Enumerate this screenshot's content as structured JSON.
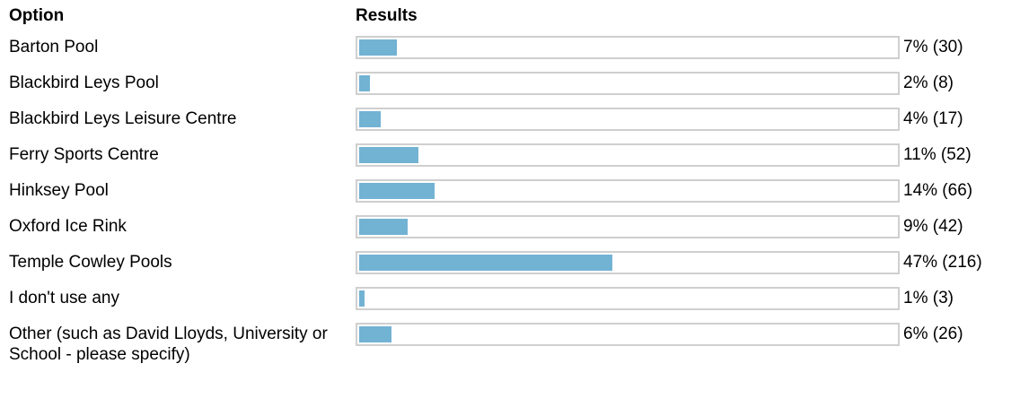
{
  "header": {
    "option": "Option",
    "results": "Results"
  },
  "rows": [
    {
      "option": "Barton Pool",
      "result": "7% (30)",
      "percent": 7
    },
    {
      "option": "Blackbird Leys Pool",
      "result": "2% (8)",
      "percent": 2
    },
    {
      "option": "Blackbird Leys Leisure Centre",
      "result": "4% (17)",
      "percent": 4
    },
    {
      "option": "Ferry Sports Centre",
      "result": "11% (52)",
      "percent": 11
    },
    {
      "option": "Hinksey Pool",
      "result": "14% (66)",
      "percent": 14
    },
    {
      "option": "Oxford Ice Rink",
      "result": "9% (42)",
      "percent": 9
    },
    {
      "option": "Temple Cowley Pools",
      "result": "47% (216)",
      "percent": 47
    },
    {
      "option": "I don't use any",
      "result": "1% (3)",
      "percent": 1
    },
    {
      "option": "Other (such as David Lloyds, University or School - please specify)",
      "result": "6% (26)",
      "percent": 6
    }
  ]
}
